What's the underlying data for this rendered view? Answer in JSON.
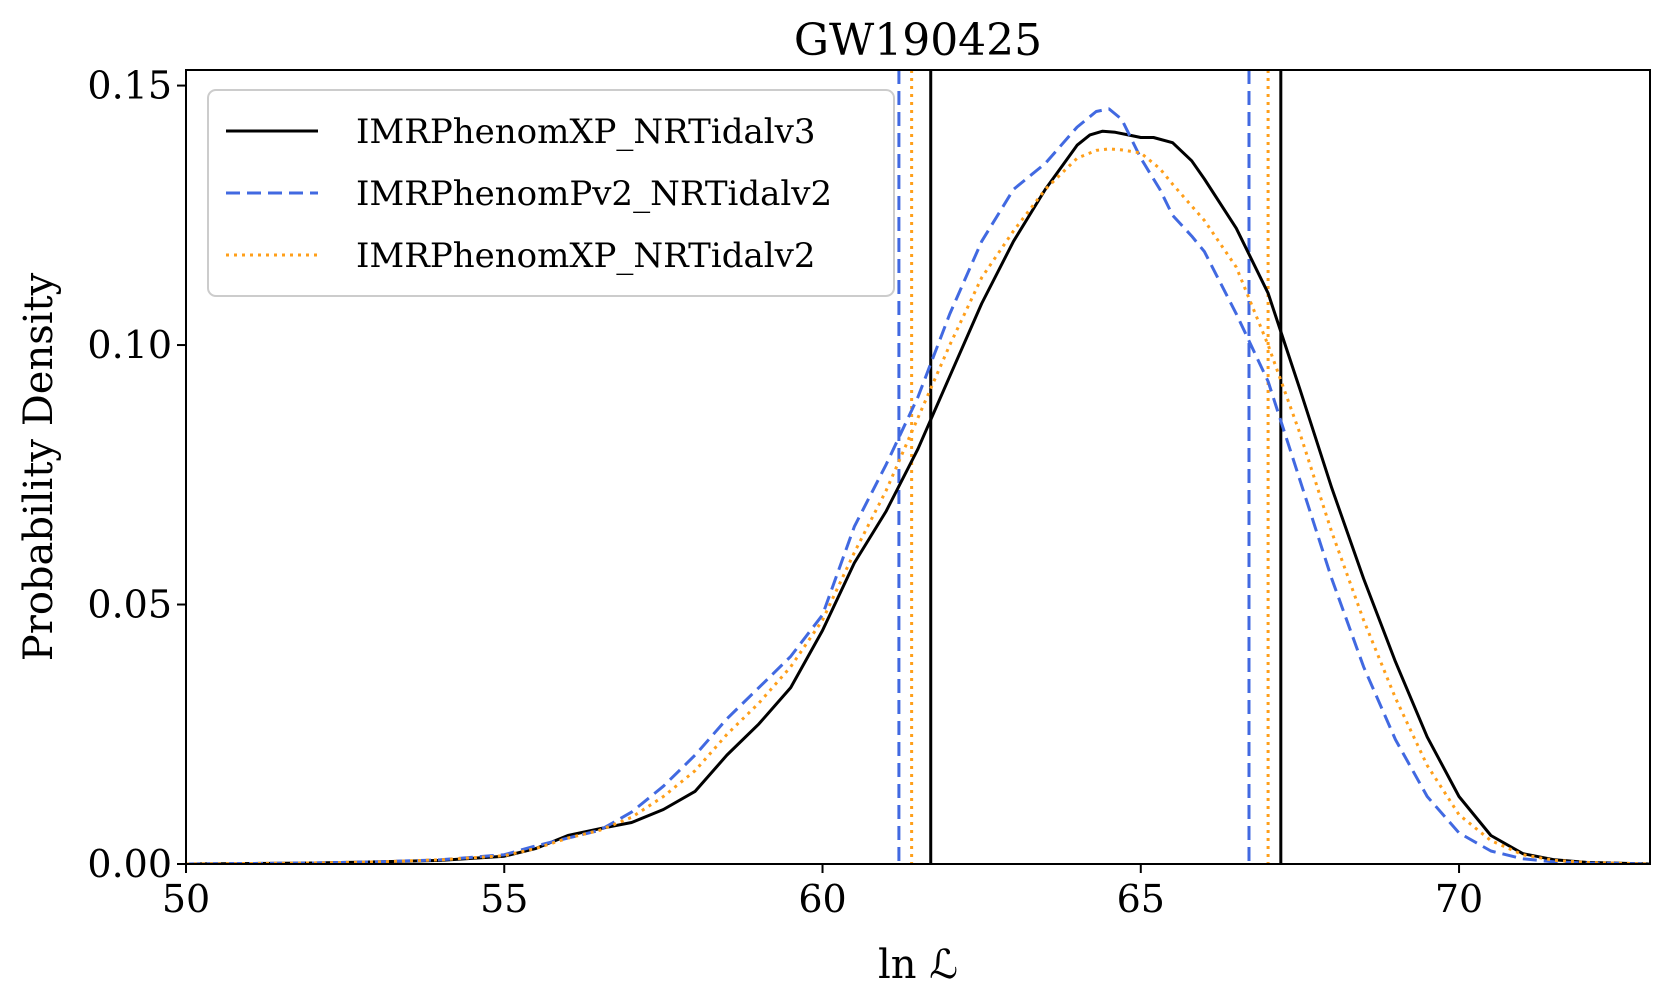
{
  "chart_data": {
    "type": "line",
    "title": "GW190425",
    "xlabel": "ln ℒ",
    "ylabel": "Probability Density",
    "xlim": [
      50,
      73
    ],
    "ylim": [
      0,
      0.153
    ],
    "xticks": [
      {
        "value": 50,
        "label": "50"
      },
      {
        "value": 55,
        "label": "55"
      },
      {
        "value": 60,
        "label": "60"
      },
      {
        "value": 65,
        "label": "65"
      },
      {
        "value": 70,
        "label": "70"
      }
    ],
    "yticks": [
      {
        "value": 0.0,
        "label": "0.00"
      },
      {
        "value": 0.05,
        "label": "0.05"
      },
      {
        "value": 0.1,
        "label": "0.10"
      },
      {
        "value": 0.15,
        "label": "0.15"
      }
    ],
    "grid": false,
    "legend_position": "top-left",
    "series": [
      {
        "name": "IMRPhenomXP_NRTidalv3",
        "color": "#000000",
        "style": "solid",
        "x": [
          50,
          52,
          53,
          54,
          55,
          55.5,
          56,
          56.5,
          57,
          57.5,
          58,
          58.5,
          59,
          59.5,
          60,
          60.5,
          61,
          61.5,
          62,
          62.5,
          63,
          63.5,
          64,
          64.2,
          64.4,
          64.6,
          64.8,
          65,
          65.2,
          65.5,
          65.8,
          66,
          66.5,
          67,
          67.5,
          68,
          68.5,
          69,
          69.5,
          70,
          70.5,
          71,
          71.5,
          72,
          73
        ],
        "y": [
          0,
          0.0002,
          0.0004,
          0.0007,
          0.0015,
          0.003,
          0.0055,
          0.0068,
          0.008,
          0.0105,
          0.014,
          0.021,
          0.027,
          0.034,
          0.045,
          0.058,
          0.068,
          0.08,
          0.094,
          0.108,
          0.12,
          0.13,
          0.1385,
          0.1405,
          0.1412,
          0.141,
          0.1405,
          0.14,
          0.14,
          0.139,
          0.1355,
          0.132,
          0.1225,
          0.11,
          0.0915,
          0.0725,
          0.055,
          0.039,
          0.0245,
          0.013,
          0.0055,
          0.002,
          0.0008,
          0.0003,
          0
        ]
      },
      {
        "name": "IMRPhenomPv2_NRTidalv2",
        "color": "#4169e1",
        "style": "dashed",
        "x": [
          50,
          52,
          53,
          54,
          55,
          55.5,
          56,
          56.5,
          57,
          57.5,
          58,
          58.5,
          59,
          59.5,
          60,
          60.5,
          61,
          61.5,
          62,
          62.5,
          63,
          63.5,
          64,
          64.3,
          64.5,
          64.7,
          65,
          65.3,
          65.5,
          65.8,
          66,
          66.5,
          67,
          67.5,
          68,
          68.5,
          69,
          69.5,
          70,
          70.5,
          71,
          71.5,
          72,
          73
        ],
        "y": [
          0,
          0.0002,
          0.0004,
          0.0008,
          0.0018,
          0.0035,
          0.005,
          0.0065,
          0.01,
          0.015,
          0.021,
          0.028,
          0.034,
          0.04,
          0.048,
          0.065,
          0.077,
          0.09,
          0.106,
          0.12,
          0.13,
          0.135,
          0.142,
          0.145,
          0.1455,
          0.1435,
          0.136,
          0.13,
          0.125,
          0.121,
          0.118,
          0.106,
          0.093,
          0.074,
          0.055,
          0.038,
          0.024,
          0.013,
          0.006,
          0.0025,
          0.001,
          0.0004,
          0.0002,
          0
        ]
      },
      {
        "name": "IMRPhenomXP_NRTidalv2",
        "color": "#ff9f1a",
        "style": "dotted",
        "x": [
          50,
          52,
          53,
          54,
          55,
          55.5,
          56,
          56.5,
          57,
          57.5,
          58,
          58.5,
          59,
          59.5,
          60,
          60.5,
          61,
          61.5,
          62,
          62.5,
          63,
          63.5,
          64,
          64.3,
          64.5,
          64.7,
          65,
          65.3,
          65.5,
          66,
          66.5,
          67,
          67.5,
          68,
          68.5,
          69,
          69.5,
          70,
          70.5,
          71,
          71.5,
          72,
          73
        ],
        "y": [
          0,
          0.0002,
          0.0004,
          0.0008,
          0.0016,
          0.003,
          0.005,
          0.0065,
          0.009,
          0.013,
          0.018,
          0.025,
          0.031,
          0.038,
          0.047,
          0.06,
          0.072,
          0.086,
          0.1,
          0.113,
          0.122,
          0.13,
          0.136,
          0.1375,
          0.1378,
          0.1376,
          0.137,
          0.134,
          0.131,
          0.124,
          0.115,
          0.1,
          0.083,
          0.064,
          0.047,
          0.032,
          0.019,
          0.0095,
          0.0045,
          0.0018,
          0.0007,
          0.0003,
          0
        ]
      }
    ],
    "vlines": [
      {
        "series": "IMRPhenomXP_NRTidalv3",
        "x": 61.7
      },
      {
        "series": "IMRPhenomXP_NRTidalv3",
        "x": 67.2
      },
      {
        "series": "IMRPhenomPv2_NRTidalv2",
        "x": 61.2
      },
      {
        "series": "IMRPhenomPv2_NRTidalv2",
        "x": 66.7
      },
      {
        "series": "IMRPhenomXP_NRTidalv2",
        "x": 61.4
      },
      {
        "series": "IMRPhenomXP_NRTidalv2",
        "x": 67.0
      }
    ]
  }
}
